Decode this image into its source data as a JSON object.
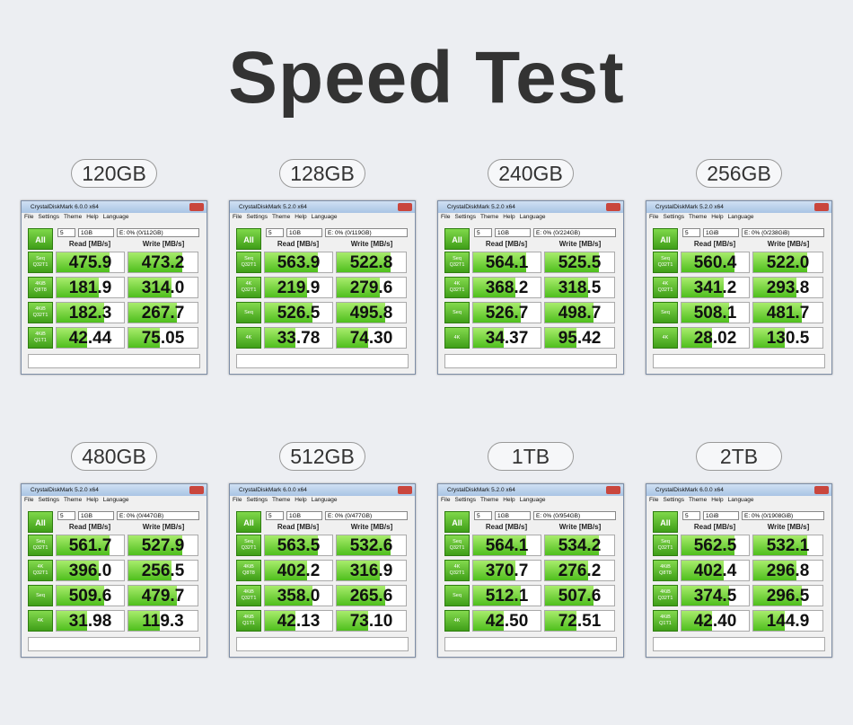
{
  "header": {
    "title": "Speed Test"
  },
  "common": {
    "menu": [
      "File",
      "Settings",
      "Theme",
      "Help",
      "Language"
    ],
    "all_button": "All",
    "read_header": "Read [MB/s]",
    "write_header": "Write [MB/s]"
  },
  "panels": [
    {
      "capacity": "120GB",
      "window_title": "CrystalDiskMark 6.0.0 x64",
      "count": "5",
      "size": "1GB",
      "drive": "E: 0% (0/112GB)",
      "rows": [
        {
          "test": "Seq Q32T1",
          "read": "475.9",
          "write": "473.2"
        },
        {
          "test": "4KiB Q8T8",
          "read": "181.9",
          "write": "314.0"
        },
        {
          "test": "4KiB Q32T1",
          "read": "182.3",
          "write": "267.7"
        },
        {
          "test": "4KiB Q1T1",
          "read": "42.44",
          "write": "75.05"
        }
      ]
    },
    {
      "capacity": "128GB",
      "window_title": "CrystalDiskMark 5.2.0 x64",
      "count": "5",
      "size": "1GB",
      "drive": "E: 0% (0/119GB)",
      "rows": [
        {
          "test": "Seq Q32T1",
          "read": "563.9",
          "write": "522.8"
        },
        {
          "test": "4K Q32T1",
          "read": "219.9",
          "write": "279.6"
        },
        {
          "test": "Seq",
          "read": "526.5",
          "write": "495.8"
        },
        {
          "test": "4K",
          "read": "33.78",
          "write": "74.30"
        }
      ]
    },
    {
      "capacity": "240GB",
      "window_title": "CrystalDiskMark 5.2.0 x64",
      "count": "5",
      "size": "1GB",
      "drive": "E: 0% (0/224GB)",
      "rows": [
        {
          "test": "Seq Q32T1",
          "read": "564.1",
          "write": "525.5"
        },
        {
          "test": "4K Q32T1",
          "read": "368.2",
          "write": "318.5"
        },
        {
          "test": "Seq",
          "read": "526.7",
          "write": "498.7"
        },
        {
          "test": "4K",
          "read": "34.37",
          "write": "95.42"
        }
      ]
    },
    {
      "capacity": "256GB",
      "window_title": "CrystalDiskMark 5.2.0 x64",
      "count": "5",
      "size": "1GiB",
      "drive": "E: 0% (0/238GiB)",
      "rows": [
        {
          "test": "Seq Q32T1",
          "read": "560.4",
          "write": "522.0"
        },
        {
          "test": "4K Q32T1",
          "read": "341.2",
          "write": "293.8"
        },
        {
          "test": "Seq",
          "read": "508.1",
          "write": "481.7"
        },
        {
          "test": "4K",
          "read": "28.02",
          "write": "130.5"
        }
      ]
    },
    {
      "capacity": "480GB",
      "window_title": "CrystalDiskMark 5.2.0 x64",
      "count": "5",
      "size": "1GB",
      "drive": "E: 0% (0/447GB)",
      "rows": [
        {
          "test": "Seq Q32T1",
          "read": "561.7",
          "write": "527.9"
        },
        {
          "test": "4K Q32T1",
          "read": "396.0",
          "write": "256.5"
        },
        {
          "test": "Seq",
          "read": "509.6",
          "write": "479.7"
        },
        {
          "test": "4K",
          "read": "31.98",
          "write": "119.3"
        }
      ]
    },
    {
      "capacity": "512GB",
      "window_title": "CrystalDiskMark 6.0.0 x64",
      "count": "5",
      "size": "1GB",
      "drive": "E: 0% (0/477GB)",
      "rows": [
        {
          "test": "Seq Q32T1",
          "read": "563.5",
          "write": "532.6"
        },
        {
          "test": "4KiB Q8T8",
          "read": "402.2",
          "write": "316.9"
        },
        {
          "test": "4KiB Q32T1",
          "read": "358.0",
          "write": "265.6"
        },
        {
          "test": "4KiB Q1T1",
          "read": "42.13",
          "write": "73.10"
        }
      ]
    },
    {
      "capacity": "1TB",
      "window_title": "CrystalDiskMark 5.2.0 x64",
      "count": "5",
      "size": "1GB",
      "drive": "E: 0% (0/954GB)",
      "rows": [
        {
          "test": "Seq Q32T1",
          "read": "564.1",
          "write": "534.2"
        },
        {
          "test": "4K Q32T1",
          "read": "370.7",
          "write": "276.2"
        },
        {
          "test": "Seq",
          "read": "512.1",
          "write": "507.6"
        },
        {
          "test": "4K",
          "read": "42.50",
          "write": "72.51"
        }
      ]
    },
    {
      "capacity": "2TB",
      "window_title": "CrystalDiskMark 6.0.0 x64",
      "count": "5",
      "size": "1GiB",
      "drive": "E: 0% (0/1908GiB)",
      "rows": [
        {
          "test": "Seq Q32T1",
          "read": "562.5",
          "write": "532.1"
        },
        {
          "test": "4KiB Q8T8",
          "read": "402.4",
          "write": "296.8"
        },
        {
          "test": "4KiB Q32T1",
          "read": "374.5",
          "write": "296.5"
        },
        {
          "test": "4KiB Q1T1",
          "read": "42.40",
          "write": "144.9"
        }
      ]
    }
  ]
}
